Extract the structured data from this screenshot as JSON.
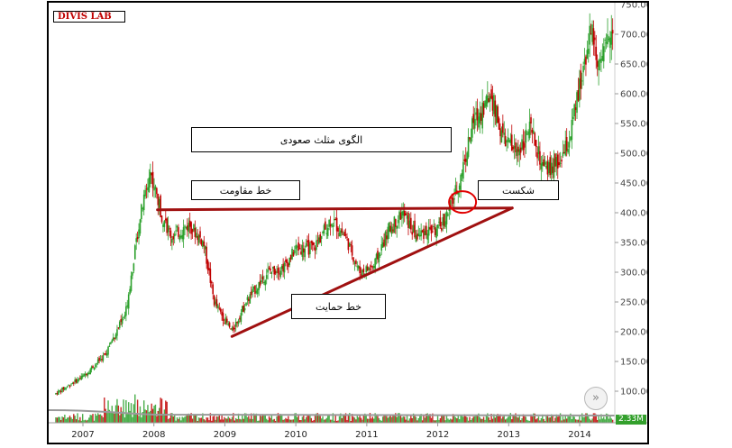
{
  "header": {
    "title": "DIVIS LAB"
  },
  "volume_badge": "2.33M",
  "nav_button_symbol": "»",
  "colors": {
    "up": "#2ca02c",
    "down": "#c00000",
    "pattern_line": "#a01010",
    "grid": "#e8e8e8"
  },
  "annotations": {
    "pattern": "الگوی مثلث صعودی",
    "resistance": "خط مقاومت",
    "breakout": "شکست",
    "support": "خط حمایت"
  },
  "chart_data": {
    "type": "candlestick",
    "title": "DIVIS LAB",
    "x_ticks": [
      "2007",
      "2008",
      "2009",
      "2010",
      "2011",
      "2012",
      "2013",
      "2014"
    ],
    "y_ticks": [
      "100.00",
      "150.00",
      "200.00",
      "250.00",
      "300.00",
      "350.00",
      "400.00",
      "450.00",
      "500.00",
      "550.00",
      "600.00",
      "650.00",
      "700.00"
    ],
    "ylim": [
      50,
      750
    ],
    "xlim": [
      2006.6,
      2014.5
    ],
    "grid": false,
    "trend": [
      [
        2006.6,
        95
      ],
      [
        2007.0,
        125
      ],
      [
        2007.3,
        160
      ],
      [
        2007.6,
        230
      ],
      [
        2007.8,
        390
      ],
      [
        2007.95,
        470
      ],
      [
        2008.1,
        400
      ],
      [
        2008.25,
        360
      ],
      [
        2008.5,
        380
      ],
      [
        2008.7,
        350
      ],
      [
        2008.85,
        250
      ],
      [
        2009.1,
        200
      ],
      [
        2009.3,
        250
      ],
      [
        2009.6,
        300
      ],
      [
        2009.85,
        310
      ],
      [
        2010.0,
        340
      ],
      [
        2010.25,
        340
      ],
      [
        2010.5,
        390
      ],
      [
        2010.7,
        360
      ],
      [
        2010.9,
        300
      ],
      [
        2011.1,
        310
      ],
      [
        2011.3,
        370
      ],
      [
        2011.5,
        400
      ],
      [
        2011.7,
        360
      ],
      [
        2011.85,
        370
      ],
      [
        2012.0,
        370
      ],
      [
        2012.15,
        400
      ],
      [
        2012.3,
        450
      ],
      [
        2012.5,
        550
      ],
      [
        2012.75,
        600
      ],
      [
        2012.9,
        530
      ],
      [
        2013.1,
        500
      ],
      [
        2013.3,
        540
      ],
      [
        2013.5,
        470
      ],
      [
        2013.7,
        480
      ],
      [
        2013.85,
        520
      ],
      [
        2014.0,
        610
      ],
      [
        2014.15,
        710
      ],
      [
        2014.3,
        640
      ],
      [
        2014.45,
        720
      ]
    ],
    "pattern_lines": {
      "resistance": {
        "start": [
          2008.05,
          405
        ],
        "end": [
          2013.05,
          408
        ]
      },
      "support": {
        "start": [
          2009.1,
          192
        ],
        "end": [
          2013.05,
          408
        ]
      },
      "breakout_point": [
        2012.35,
        418
      ]
    }
  }
}
